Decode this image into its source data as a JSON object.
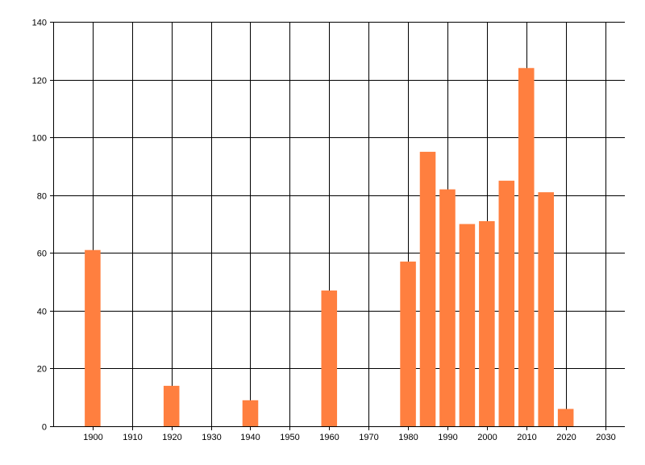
{
  "chart_data": {
    "type": "bar",
    "title": "",
    "xlabel": "",
    "ylabel": "",
    "x": [
      1900,
      1920,
      1940,
      1960,
      1980,
      1985,
      1990,
      1995,
      2000,
      2005,
      2010,
      2015,
      2020
    ],
    "values": [
      61,
      14,
      9,
      47,
      57,
      95,
      82,
      70,
      71,
      85,
      124,
      81,
      6
    ],
    "xlim": [
      1890,
      2035
    ],
    "ylim": [
      0,
      140
    ],
    "x_ticks": [
      1900,
      1910,
      1920,
      1930,
      1940,
      1950,
      1960,
      1970,
      1980,
      1990,
      2000,
      2010,
      2020,
      2030
    ],
    "y_ticks": [
      0,
      20,
      40,
      60,
      80,
      100,
      120,
      140
    ],
    "grid": true,
    "legend": "none",
    "bar_color": "#ff7f3f",
    "grid_color": "#000000"
  }
}
